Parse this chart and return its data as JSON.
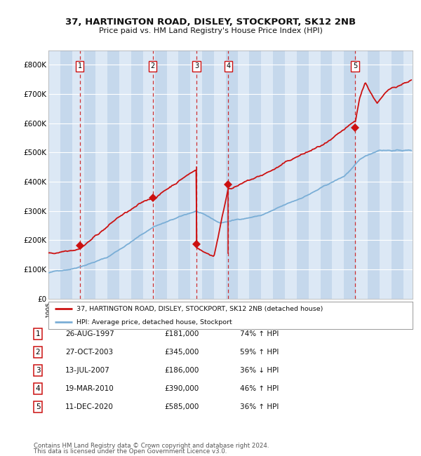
{
  "title1": "37, HARTINGTON ROAD, DISLEY, STOCKPORT, SK12 2NB",
  "title2": "Price paid vs. HM Land Registry's House Price Index (HPI)",
  "plot_bg": "#dce8f5",
  "hpi_color": "#7aaed6",
  "price_color": "#cc1111",
  "ylim": [
    0,
    850000
  ],
  "yticks": [
    0,
    100000,
    200000,
    300000,
    400000,
    500000,
    600000,
    700000,
    800000
  ],
  "ytick_labels": [
    "£0",
    "£100K",
    "£200K",
    "£300K",
    "£400K",
    "£500K",
    "£600K",
    "£700K",
    "£800K"
  ],
  "xlim_start": 1995.0,
  "xlim_end": 2025.8,
  "transactions": [
    {
      "num": 1,
      "date": "26-AUG-1997",
      "year": 1997.65,
      "price": 181000,
      "hpi_pct": "74%",
      "direction": "↑"
    },
    {
      "num": 2,
      "date": "27-OCT-2003",
      "year": 2003.82,
      "price": 345000,
      "hpi_pct": "59%",
      "direction": "↑"
    },
    {
      "num": 3,
      "date": "13-JUL-2007",
      "year": 2007.53,
      "price": 186000,
      "hpi_pct": "36%",
      "direction": "↓"
    },
    {
      "num": 4,
      "date": "19-MAR-2010",
      "year": 2010.21,
      "price": 390000,
      "hpi_pct": "46%",
      "direction": "↑"
    },
    {
      "num": 5,
      "date": "11-DEC-2020",
      "year": 2020.95,
      "price": 585000,
      "hpi_pct": "36%",
      "direction": "↑"
    }
  ],
  "legend_line1": "37, HARTINGTON ROAD, DISLEY, STOCKPORT, SK12 2NB (detached house)",
  "legend_line2": "HPI: Average price, detached house, Stockport",
  "footer1": "Contains HM Land Registry data © Crown copyright and database right 2024.",
  "footer2": "This data is licensed under the Open Government Licence v3.0."
}
